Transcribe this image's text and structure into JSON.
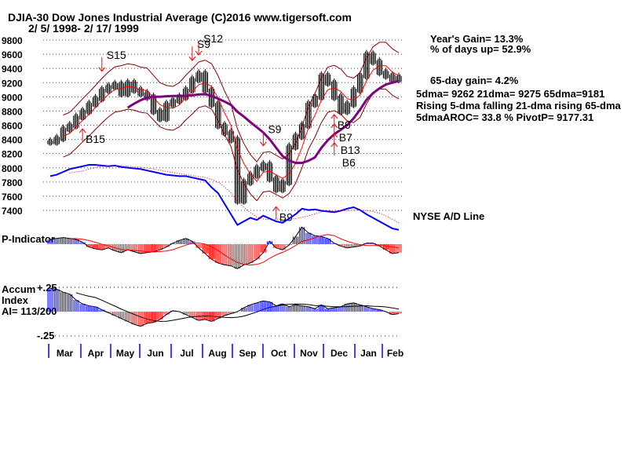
{
  "header": {
    "title": "DJIA-30  Dow Jones Industrial Average   (C)2016 www.tigersoft.com",
    "date_range": "2/ 5/ 1998- 2/ 17/ 1999"
  },
  "stats": {
    "years_gain": "Year's Gain= 13.3%",
    "pct_days_up": "% of days up= 52.9%",
    "gain_65": "65-day gain= 4.2%",
    "dmas": "5dma= 9262 21dma= 9275 65dma=9181",
    "trend": "Rising 5-dma falling 21-dma rising 65-dma",
    "aroc": "5dmaAROC= 33.8 %  PivotP= 9177.31"
  },
  "panels": {
    "ad_label": "NYSE A/D Line",
    "p_label": "P-Indicator",
    "accum_label1": "Accum",
    "accum_label2": "Index",
    "accum_label3": "AI= 113/200",
    "accum_top": "+.25",
    "accum_bottom": "-.25"
  },
  "signals": [
    {
      "label": "S15",
      "type": "sell",
      "week": 8
    },
    {
      "label": "S9",
      "type": "sell",
      "week": 22
    },
    {
      "label": "S12",
      "type": "sell",
      "week": 23
    },
    {
      "label": "B15",
      "type": "buy",
      "week": 5
    },
    {
      "label": "S9",
      "type": "sell",
      "week": 33
    },
    {
      "label": "B9",
      "type": "buy",
      "week": 35
    },
    {
      "label": "B9",
      "type": "buy",
      "week": 44
    },
    {
      "label": "B7",
      "type": "buy",
      "week": 44
    },
    {
      "label": "B13",
      "type": "buy",
      "week": 44
    },
    {
      "label": "B6",
      "type": "buy",
      "week": 44
    }
  ],
  "colors": {
    "up": "#0000ff",
    "down": "#ff0000",
    "ma21": "#ff0000",
    "ma65": "#800080",
    "band": "#8b0000",
    "grid": "#008000",
    "ad": "#0000ff"
  },
  "chart_data": {
    "type": "line",
    "title": "DJIA-30 Dow Jones Industrial Average",
    "ylim": [
      7400,
      9800
    ],
    "yticks": [
      9800,
      9600,
      9400,
      9200,
      9000,
      8800,
      8600,
      8400,
      8200,
      8000,
      7800,
      7600,
      7400
    ],
    "months": [
      "Mar",
      "Apr",
      "May",
      "Jun",
      "Jul",
      "Aug",
      "Sep",
      "Oct",
      "Nov",
      "Dec",
      "Jan",
      "Feb"
    ],
    "price_close": [
      8370,
      8420,
      8550,
      8600,
      8720,
      8800,
      8900,
      8980,
      9100,
      9150,
      9180,
      9050,
      9200,
      9100,
      9050,
      9000,
      8800,
      8700,
      8900,
      8950,
      9000,
      9100,
      9250,
      9330,
      9100,
      8900,
      8600,
      8500,
      8400,
      7540,
      7800,
      7900,
      8000,
      8050,
      7850,
      7700,
      7800,
      8300,
      8450,
      8600,
      8900,
      9000,
      9300,
      9200,
      9000,
      8800,
      8900,
      9100,
      9300,
      9600,
      9500,
      9350,
      9300,
      9250,
      9280
    ],
    "ad_line": [
      84,
      86,
      90,
      94,
      96,
      98,
      100,
      100,
      99,
      98,
      99,
      97,
      96,
      95,
      94,
      92,
      90,
      88,
      86,
      85,
      84,
      84,
      82,
      80,
      78,
      68,
      60,
      45,
      30,
      15,
      20,
      25,
      22,
      28,
      24,
      20,
      18,
      24,
      30,
      38,
      36,
      37,
      35,
      34,
      33,
      35,
      38,
      40,
      36,
      30,
      25,
      20,
      15,
      10,
      8
    ],
    "p_indicator": [
      0.5,
      0.6,
      0.7,
      0.6,
      0.5,
      0.2,
      -0.3,
      -0.5,
      -0.6,
      -0.4,
      -0.7,
      -0.9,
      -0.6,
      -0.8,
      -1.0,
      -0.9,
      -0.8,
      -0.6,
      -0.3,
      0.1,
      0.4,
      0.6,
      0.3,
      -0.4,
      -1.0,
      -1.6,
      -2.0,
      -2.2,
      -2.3,
      -2.6,
      -2.2,
      -2.0,
      -1.6,
      -0.9,
      0.3,
      -0.4,
      -0.6,
      -0.1,
      0.8,
      1.8,
      1.2,
      0.9,
      0.8,
      0.6,
      0.1,
      -0.2,
      -0.4,
      -0.3,
      -0.2,
      0.1,
      0.1,
      -0.2,
      -0.6,
      -1.0,
      -0.9
    ],
    "accum_index": [
      0.24,
      0.23,
      0.2,
      0.18,
      0.12,
      0.08,
      0.06,
      0.05,
      0.02,
      -0.01,
      -0.04,
      -0.07,
      -0.1,
      -0.13,
      -0.15,
      -0.12,
      -0.11,
      -0.08,
      -0.03,
      0.01,
      0.0,
      -0.03,
      -0.06,
      -0.09,
      -0.08,
      -0.1,
      -0.07,
      -0.04,
      -0.02,
      0.0,
      0.04,
      0.07,
      0.09,
      0.11,
      0.1,
      0.06,
      0.08,
      0.05,
      0.07,
      0.06,
      0.05,
      0.03,
      0.07,
      0.03,
      0.04,
      0.05,
      0.08,
      0.09,
      0.07,
      0.05,
      0.03,
      0.02,
      0.0,
      -0.03,
      -0.02
    ]
  }
}
